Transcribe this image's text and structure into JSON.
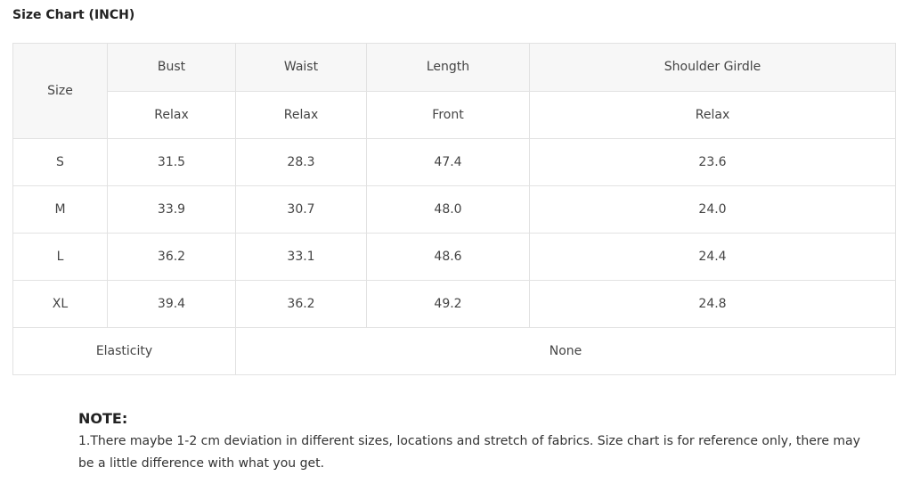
{
  "title": "Size Chart (INCH)",
  "table": {
    "size_header": "Size",
    "headers": [
      "Bust",
      "Waist",
      "Length",
      "Shoulder Girdle"
    ],
    "subheaders": [
      "Relax",
      "Relax",
      "Front",
      "Relax"
    ],
    "rows": [
      [
        "S",
        "31.5",
        "28.3",
        "47.4",
        "23.6"
      ],
      [
        "M",
        "33.9",
        "30.7",
        "48.0",
        "24.0"
      ],
      [
        "L",
        "36.2",
        "33.1",
        "48.6",
        "24.4"
      ],
      [
        "XL",
        "39.4",
        "36.2",
        "49.2",
        "24.8"
      ]
    ],
    "elasticity_label": "Elasticity",
    "elasticity_value": "None"
  },
  "note": {
    "heading": "NOTE:",
    "text": "1.There maybe 1-2 cm deviation in different sizes, locations and stretch of fabrics. Size chart is for reference only, there may be a little difference with what you get."
  }
}
